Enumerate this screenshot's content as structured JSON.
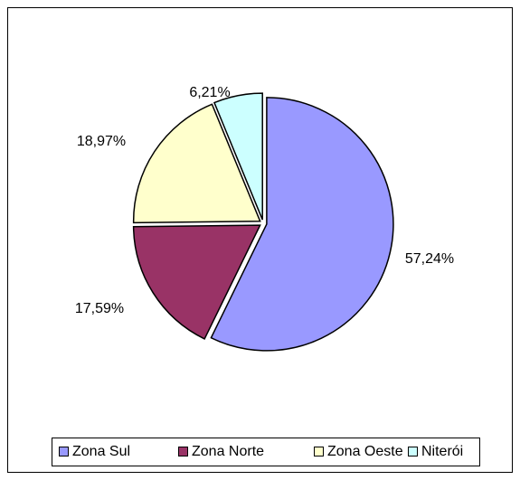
{
  "chart_data": {
    "type": "pie",
    "categories": [
      "Zona Sul",
      "Zona Norte",
      "Zona Oeste",
      "Niterói"
    ],
    "values": [
      57.24,
      17.59,
      18.97,
      6.21
    ],
    "value_labels": [
      "57,24%",
      "17,59%",
      "18,97%",
      "6,21%"
    ],
    "colors": [
      "#9999ff",
      "#993366",
      "#ffffcc",
      "#ccffff"
    ],
    "legend": "bottom"
  }
}
